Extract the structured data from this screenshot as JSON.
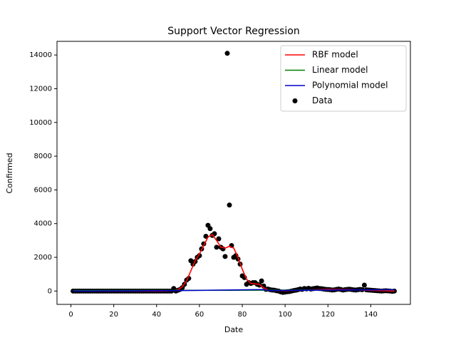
{
  "chart_data": {
    "type": "combo",
    "title": "Support Vector Regression",
    "x_label": "Date",
    "y_label": "Confirmed",
    "xlim": [
      -6.5,
      158.5
    ],
    "ylim": [
      -790,
      14810
    ],
    "xticks": [
      0,
      20,
      40,
      60,
      80,
      100,
      120,
      140
    ],
    "yticks": [
      0,
      2000,
      4000,
      6000,
      8000,
      10000,
      12000,
      14000
    ],
    "legend": "upper right",
    "series": [
      {
        "name": "RBF model",
        "kind": "line",
        "color": "#ff0000",
        "x": [
          1,
          10,
          20,
          30,
          40,
          45,
          48,
          50,
          52,
          54,
          56,
          58,
          60,
          62,
          64,
          66,
          68,
          70,
          72,
          74,
          76,
          78,
          80,
          82,
          84,
          86,
          88,
          90,
          92,
          95,
          100,
          110,
          120,
          130,
          140,
          151
        ],
        "values": [
          0,
          0,
          0,
          0,
          0,
          10,
          30,
          80,
          250,
          600,
          1200,
          1800,
          2200,
          2700,
          3200,
          3350,
          3000,
          2600,
          2550,
          2650,
          2550,
          2000,
          1300,
          700,
          450,
          420,
          400,
          200,
          50,
          30,
          20,
          60,
          100,
          80,
          40,
          0
        ]
      },
      {
        "name": "Linear model",
        "kind": "line",
        "color": "#008000",
        "x": [
          1,
          151
        ],
        "values": [
          30,
          70
        ]
      },
      {
        "name": "Polynomial model",
        "kind": "line",
        "color": "#0000cc",
        "x": [
          1,
          30,
          60,
          90,
          92,
          120,
          151
        ],
        "values": [
          0,
          10,
          40,
          90,
          30,
          60,
          80
        ]
      },
      {
        "name": "Data",
        "kind": "scatter",
        "color": "#000000",
        "x": [
          1,
          2,
          3,
          4,
          5,
          6,
          7,
          8,
          9,
          10,
          11,
          12,
          13,
          14,
          15,
          16,
          17,
          18,
          19,
          20,
          21,
          22,
          23,
          24,
          25,
          26,
          27,
          28,
          29,
          30,
          31,
          32,
          33,
          34,
          35,
          36,
          37,
          38,
          39,
          40,
          41,
          42,
          43,
          44,
          45,
          46,
          47,
          48,
          49,
          50,
          51,
          52,
          53,
          54,
          55,
          56,
          57,
          58,
          59,
          60,
          61,
          62,
          63,
          64,
          65,
          66,
          67,
          68,
          69,
          70,
          71,
          72,
          73,
          74,
          75,
          76,
          77,
          78,
          79,
          80,
          81,
          82,
          83,
          84,
          85,
          86,
          87,
          88,
          89,
          90,
          91,
          92,
          93,
          94,
          95,
          96,
          97,
          98,
          99,
          100,
          101,
          102,
          103,
          104,
          105,
          106,
          107,
          108,
          109,
          110,
          111,
          112,
          113,
          114,
          115,
          116,
          117,
          118,
          119,
          120,
          121,
          122,
          123,
          124,
          125,
          126,
          127,
          128,
          129,
          130,
          131,
          132,
          133,
          134,
          135,
          136,
          137,
          138,
          139,
          140,
          141,
          142,
          143,
          144,
          145,
          146,
          147,
          148,
          149,
          150,
          151
        ],
        "values": [
          0,
          0,
          0,
          0,
          0,
          0,
          0,
          0,
          0,
          0,
          0,
          0,
          0,
          0,
          0,
          0,
          0,
          0,
          0,
          0,
          0,
          0,
          0,
          0,
          0,
          0,
          0,
          0,
          0,
          0,
          0,
          0,
          0,
          0,
          0,
          0,
          0,
          0,
          0,
          0,
          0,
          0,
          0,
          0,
          0,
          0,
          0,
          150,
          0,
          50,
          100,
          200,
          400,
          650,
          750,
          1800,
          1600,
          1750,
          2000,
          2100,
          2500,
          2800,
          3250,
          3900,
          3700,
          3300,
          3400,
          2600,
          3100,
          2600,
          2500,
          2050,
          14100,
          5100,
          2700,
          2000,
          2100,
          1900,
          1600,
          900,
          800,
          400,
          500,
          450,
          500,
          500,
          400,
          350,
          600,
          300,
          100,
          120,
          80,
          60,
          50,
          20,
          0,
          -50,
          -80,
          -60,
          -40,
          -30,
          0,
          30,
          50,
          80,
          120,
          100,
          150,
          130,
          160,
          120,
          140,
          160,
          180,
          150,
          140,
          120,
          100,
          90,
          80,
          60,
          70,
          100,
          120,
          90,
          60,
          80,
          100,
          110,
          90,
          70,
          60,
          80,
          100,
          80,
          350,
          70,
          60,
          50,
          40,
          30,
          20,
          10,
          0,
          10,
          20,
          10,
          0,
          -20,
          0
        ]
      }
    ]
  }
}
